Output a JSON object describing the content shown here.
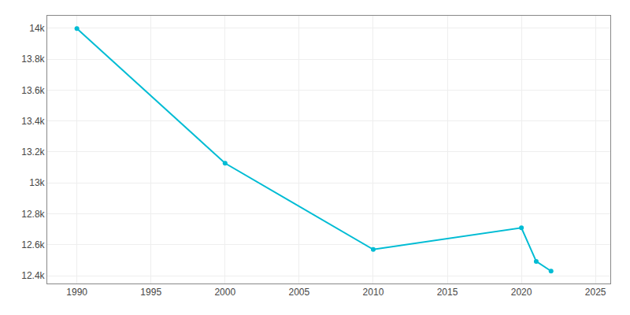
{
  "chart_data": {
    "type": "line",
    "x": [
      1990,
      2000,
      2010,
      2020,
      2021,
      2022
    ],
    "values": [
      13997,
      13127,
      12570,
      12710,
      12493,
      12430
    ],
    "color": "#00bcd4",
    "marker": "circle",
    "xlim": [
      1988,
      2026
    ],
    "ylim": [
      12350,
      14080
    ],
    "xticks": [
      1990,
      1995,
      2000,
      2005,
      2010,
      2015,
      2020,
      2025
    ],
    "yticks": [
      {
        "value": 12400,
        "label": "12.4k"
      },
      {
        "value": 12600,
        "label": "12.6k"
      },
      {
        "value": 12800,
        "label": "12.8k"
      },
      {
        "value": 13000,
        "label": "13k"
      },
      {
        "value": 13200,
        "label": "13.2k"
      },
      {
        "value": 13400,
        "label": "13.4k"
      },
      {
        "value": 13600,
        "label": "13.6k"
      },
      {
        "value": 13800,
        "label": "13.8k"
      },
      {
        "value": 14000,
        "label": "14k"
      }
    ],
    "grid": true
  }
}
